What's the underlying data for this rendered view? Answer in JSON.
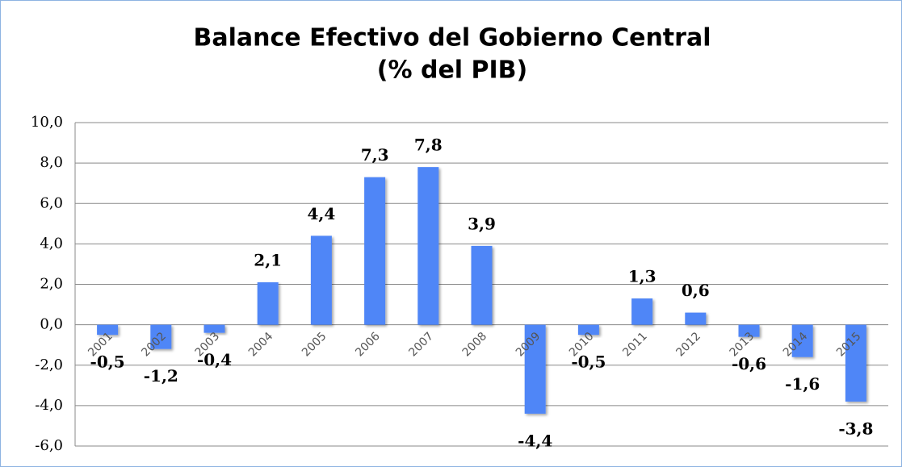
{
  "chart_data": {
    "type": "bar",
    "title": "Balance Efectivo del Gobierno Central",
    "subtitle": "(% del PIB)",
    "categories": [
      "2001",
      "2002",
      "2003",
      "2004",
      "2005",
      "2006",
      "2007",
      "2008",
      "2009",
      "2010",
      "2011",
      "2012",
      "2013",
      "2014",
      "2015"
    ],
    "values": [
      -0.5,
      -1.2,
      -0.4,
      2.1,
      4.4,
      7.3,
      7.8,
      3.9,
      -4.4,
      -0.5,
      1.3,
      0.6,
      -0.6,
      -1.6,
      -3.8
    ],
    "value_labels": [
      "-0,5",
      "-1,2",
      "-0,4",
      "2,1",
      "4,4",
      "7,3",
      "7,8",
      "3,9",
      "-4,4",
      "-0,5",
      "1,3",
      "0,6",
      "-0,6",
      "-1,6",
      "-3,8"
    ],
    "color": "#4f86f7",
    "ylim": [
      -6,
      10
    ],
    "yticks": [
      {
        "value": -6,
        "label": "-6,0"
      },
      {
        "value": -4,
        "label": "-4,0"
      },
      {
        "value": -2,
        "label": "-2,0"
      },
      {
        "value": 0,
        "label": "0,0"
      },
      {
        "value": 2,
        "label": "2,0"
      },
      {
        "value": 4,
        "label": "4,0"
      },
      {
        "value": 6,
        "label": "6,0"
      },
      {
        "value": 8,
        "label": "8,0"
      },
      {
        "value": 10,
        "label": "10,0"
      }
    ],
    "grid": true
  }
}
